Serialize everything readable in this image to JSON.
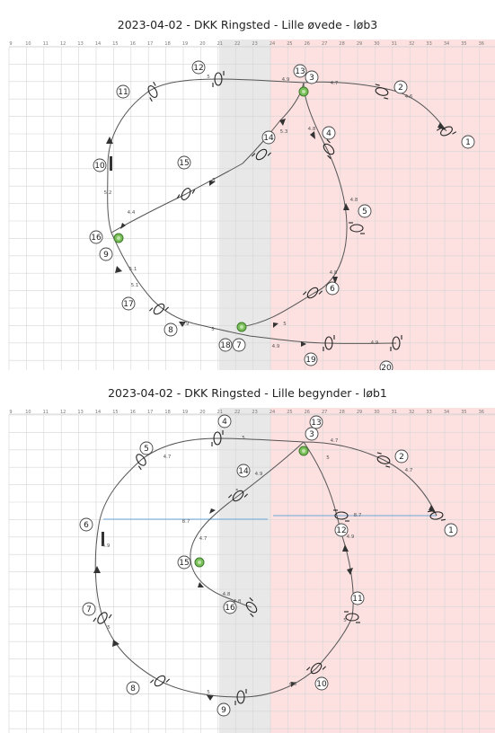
{
  "courses": [
    {
      "title": "2023-04-02 - DKK Ringsted - Lille øvede - løb3",
      "ruler": [
        "9",
        "10",
        "11",
        "12",
        "13",
        "14",
        "15",
        "16",
        "17",
        "18",
        "19",
        "20",
        "21",
        "22",
        "23",
        "24",
        "25",
        "26",
        "27",
        "28",
        "29",
        "30",
        "31",
        "32",
        "33",
        "34",
        "35",
        "36"
      ],
      "numbers": [
        {
          "n": "1"
        },
        {
          "n": "2"
        },
        {
          "n": "3"
        },
        {
          "n": "4"
        },
        {
          "n": "5"
        },
        {
          "n": "6"
        },
        {
          "n": "7"
        },
        {
          "n": "8"
        },
        {
          "n": "9"
        },
        {
          "n": "10"
        },
        {
          "n": "11"
        },
        {
          "n": "12"
        },
        {
          "n": "13"
        },
        {
          "n": "14"
        },
        {
          "n": "15"
        },
        {
          "n": "16"
        },
        {
          "n": "17"
        },
        {
          "n": "18"
        },
        {
          "n": "19"
        },
        {
          "n": "20"
        }
      ],
      "distances": [
        "4.9",
        "4.7",
        "4.6",
        "5.3",
        "4.8",
        "4.8",
        "4.8",
        "5",
        "5.2",
        "4.4",
        "5.1",
        "5.1",
        "4.9",
        "5",
        "4.9",
        "4.9",
        "5",
        "5"
      ]
    },
    {
      "title": "2023-04-02 - DKK Ringsted - Lille begynder - løb1",
      "ruler": [
        "9",
        "10",
        "11",
        "12",
        "13",
        "14",
        "15",
        "16",
        "17",
        "18",
        "19",
        "20",
        "21",
        "22",
        "23",
        "24",
        "25",
        "26",
        "27",
        "28",
        "29",
        "30",
        "31",
        "32",
        "33",
        "34",
        "35",
        "36"
      ],
      "numbers": [
        {
          "n": "1"
        },
        {
          "n": "2"
        },
        {
          "n": "3"
        },
        {
          "n": "4"
        },
        {
          "n": "5"
        },
        {
          "n": "6"
        },
        {
          "n": "7"
        },
        {
          "n": "8"
        },
        {
          "n": "9"
        },
        {
          "n": "10"
        },
        {
          "n": "11"
        },
        {
          "n": "12"
        },
        {
          "n": "13"
        },
        {
          "n": "14"
        },
        {
          "n": "15"
        },
        {
          "n": "16"
        }
      ],
      "distances": [
        "5",
        "4.7",
        "4.7",
        "4.7",
        "4.9",
        "5",
        "4.9",
        "5",
        "5",
        "4.8",
        "5",
        "4.9",
        "5",
        "4.8",
        "4.7",
        "4.8",
        "8.7",
        "8.7"
      ]
    }
  ]
}
